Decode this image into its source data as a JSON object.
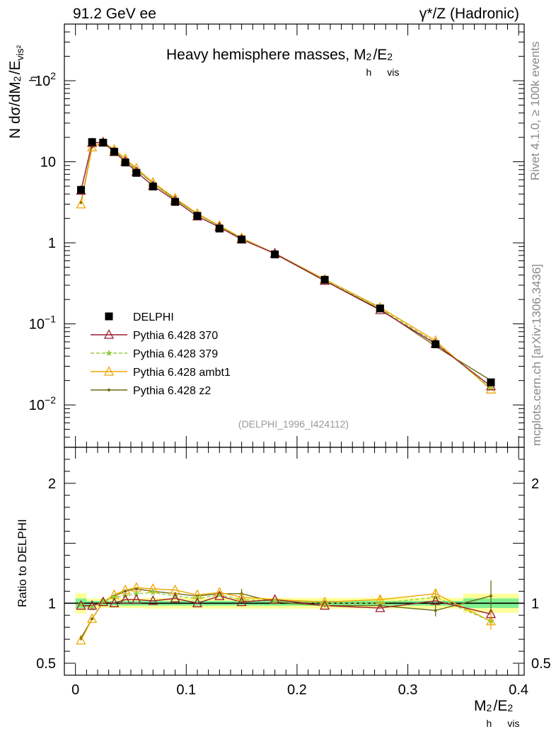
{
  "header": {
    "left": "91.2 GeV ee",
    "right_prefix": "γ*/Z (Hadronic)"
  },
  "side": {
    "rivet": "Rivet 4.1.0, ≥ 100k events",
    "mcplots": "mcplots.cern.ch [arXiv:1306.3436]"
  },
  "colors": {
    "data": "#000000",
    "p370": "#9b1b30",
    "p379": "#8fcf3c",
    "ambt1": "#f0a500",
    "z2": "#6b6b12",
    "band_yellow": "#ffff99",
    "band_green": "#80f090"
  },
  "chart_data": [
    {
      "type": "line",
      "title": "Heavy hemisphere masses, M_h^2/E_vis^2",
      "title_main": "Heavy hemisphere masses, M",
      "title_sup": "2",
      "title_sub": "h",
      "title_rest": "/E",
      "title_rest_sup": "2",
      "title_rest_sub": "vis",
      "ylabel": "N  dσ/dM_h^2/E_vis^2",
      "ylabel_main": "N   dσ/dM",
      "ylabel_sup": "2",
      "ylabel_sub": "h",
      "ylabel_rest": "/E",
      "ylabel_rest_sub": "vis²",
      "yscale": "log",
      "ylim": [
        0.003,
        500
      ],
      "xlim": [
        -0.01,
        0.405
      ],
      "y_ticks": [
        {
          "value": 0.01,
          "base": "10",
          "exp": "−2"
        },
        {
          "value": 0.1,
          "base": "10",
          "exp": "−1"
        },
        {
          "value": 1,
          "base": "1",
          "exp": ""
        },
        {
          "value": 10,
          "base": "10",
          "exp": ""
        },
        {
          "value": 100,
          "base": "10",
          "exp": "2"
        }
      ],
      "watermark": "(DELPHI_1996_I424112)",
      "legend_position": "left-middle",
      "x": [
        0.005,
        0.015,
        0.025,
        0.035,
        0.045,
        0.055,
        0.07,
        0.09,
        0.11,
        0.13,
        0.15,
        0.18,
        0.225,
        0.275,
        0.325,
        0.375
      ],
      "series": [
        {
          "name": "DELPHI",
          "key": "data",
          "marker": "square",
          "values": [
            4.5,
            17.5,
            17.2,
            13.3,
            9.8,
            7.3,
            4.95,
            3.2,
            2.15,
            1.5,
            1.1,
            0.72,
            0.35,
            0.155,
            0.056,
            0.019
          ]
        },
        {
          "name": "Pythia 6.428 370",
          "key": "p370",
          "marker": "open-triangle",
          "values": [
            4.4,
            17.1,
            17.4,
            13.2,
            10.1,
            7.5,
            5.05,
            3.3,
            2.12,
            1.56,
            1.1,
            0.74,
            0.34,
            0.148,
            0.057,
            0.017
          ]
        },
        {
          "name": "Pythia 6.428 379",
          "key": "p379",
          "marker": "star",
          "dashed": true,
          "values": [
            4.45,
            16.8,
            17.7,
            13.8,
            10.4,
            7.9,
            5.4,
            3.4,
            2.23,
            1.6,
            1.13,
            0.74,
            0.35,
            0.155,
            0.059,
            0.016
          ]
        },
        {
          "name": "Pythia 6.428 ambt1",
          "key": "ambt1",
          "marker": "open-triangle",
          "values": [
            2.98,
            15.1,
            17.5,
            14.2,
            10.9,
            8.3,
            5.55,
            3.55,
            2.3,
            1.63,
            1.15,
            0.74,
            0.355,
            0.16,
            0.062,
            0.0155
          ]
        },
        {
          "name": "Pythia 6.428 z2",
          "key": "z2",
          "marker": "dot",
          "values": [
            3.15,
            15.2,
            17.4,
            14.0,
            10.8,
            8.2,
            5.45,
            3.45,
            2.27,
            1.62,
            1.13,
            0.73,
            0.34,
            0.152,
            0.053,
            0.02
          ]
        }
      ]
    },
    {
      "type": "line",
      "ylabel": "Ratio to DELPHI",
      "xlabel": "M_h^2/E_vis^2",
      "xlabel_main": "M",
      "xlabel_sup": "2",
      "xlabel_sub": "h",
      "xlabel_rest": "/E",
      "xlabel_rest_sup": "2",
      "xlabel_rest_sub": "vis",
      "ylim": [
        0.4,
        2.3
      ],
      "xlim": [
        -0.01,
        0.405
      ],
      "x_ticks": [
        {
          "value": 0,
          "label": "0"
        },
        {
          "value": 0.1,
          "label": "0.1"
        },
        {
          "value": 0.2,
          "label": "0.2"
        },
        {
          "value": 0.3,
          "label": "0.3"
        },
        {
          "value": 0.4,
          "label": "0.4"
        }
      ],
      "y_ticks": [
        {
          "value": 0.5,
          "label": "0.5"
        },
        {
          "value": 1,
          "label": "1"
        },
        {
          "value": 2,
          "label": "2"
        }
      ],
      "band_edges": [
        0.0,
        0.01,
        0.02,
        0.03,
        0.04,
        0.05,
        0.06,
        0.08,
        0.1,
        0.12,
        0.14,
        0.16,
        0.2,
        0.25,
        0.3,
        0.35,
        0.4
      ],
      "band_yellow_halfwidth": [
        0.085,
        0.04,
        0.04,
        0.04,
        0.04,
        0.04,
        0.045,
        0.045,
        0.045,
        0.045,
        0.045,
        0.045,
        0.045,
        0.045,
        0.045,
        0.08
      ],
      "band_green_halfwidth": [
        0.04,
        0.02,
        0.02,
        0.02,
        0.02,
        0.02,
        0.02,
        0.02,
        0.02,
        0.02,
        0.02,
        0.02,
        0.02,
        0.02,
        0.02,
        0.04
      ],
      "x": [
        0.005,
        0.015,
        0.025,
        0.035,
        0.045,
        0.055,
        0.07,
        0.09,
        0.11,
        0.13,
        0.15,
        0.18,
        0.225,
        0.275,
        0.325,
        0.375
      ],
      "series": [
        {
          "name": "Pythia 6.428 370",
          "key": "p370",
          "marker": "open-triangle",
          "values": [
            0.98,
            0.98,
            1.01,
            1.0,
            1.03,
            1.03,
            1.02,
            1.04,
            1.0,
            1.06,
            1.01,
            1.03,
            0.98,
            0.96,
            1.02,
            0.91
          ]
        },
        {
          "name": "Pythia 6.428 379",
          "key": "p379",
          "marker": "star",
          "dashed": true,
          "values": [
            0.99,
            0.96,
            1.02,
            1.05,
            1.06,
            1.08,
            1.09,
            1.06,
            1.04,
            1.07,
            1.03,
            1.02,
            1.0,
            1.0,
            1.05,
            0.85
          ]
        },
        {
          "name": "Pythia 6.428 ambt1",
          "key": "ambt1",
          "marker": "open-triangle",
          "values": [
            0.69,
            0.87,
            1.01,
            1.07,
            1.11,
            1.13,
            1.12,
            1.11,
            1.07,
            1.09,
            1.05,
            1.03,
            1.01,
            1.03,
            1.08,
            0.85
          ]
        },
        {
          "name": "Pythia 6.428 z2",
          "key": "z2",
          "marker": "dot",
          "values": [
            0.71,
            0.87,
            1.01,
            1.06,
            1.1,
            1.12,
            1.1,
            1.08,
            1.06,
            1.08,
            1.08,
            1.01,
            0.98,
            0.98,
            0.94,
            1.06
          ]
        }
      ],
      "error_bars": [
        {
          "key": "z2",
          "index": 0,
          "low": 0.69,
          "high": 0.73
        },
        {
          "key": "z2",
          "index": 14,
          "low": 0.89,
          "high": 1.0
        },
        {
          "key": "z2",
          "index": 15,
          "low": 0.92,
          "high": 1.19
        },
        {
          "key": "ambt1",
          "index": 15,
          "low": 0.78,
          "high": 0.92
        },
        {
          "key": "ambt1",
          "index": 14,
          "low": 1.04,
          "high": 1.12
        },
        {
          "key": "ambt1",
          "index": 13,
          "low": 0.99,
          "high": 1.07
        },
        {
          "key": "z2",
          "index": 10,
          "low": 1.05,
          "high": 1.12
        }
      ]
    }
  ]
}
